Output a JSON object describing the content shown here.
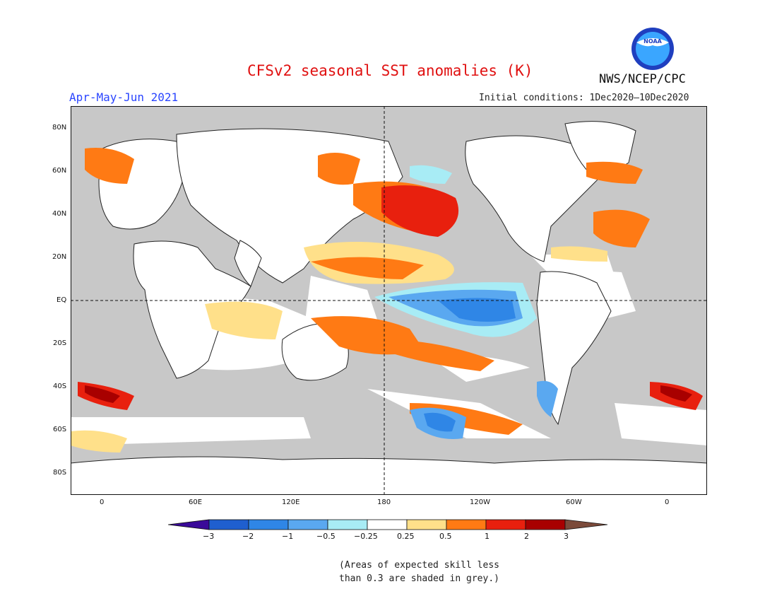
{
  "title": "CFSv2 seasonal SST anomalies (K)",
  "season": "Apr-May-Jun 2021",
  "initial_conditions": "Initial conditions: 1Dec2020–10Dec2020",
  "agency": "NWS/NCEP/CPC",
  "logo": {
    "text": "NOAA",
    "colors": {
      "outer": "#1f3fbf",
      "inner": "#3aa6ff",
      "bird": "#ffffff"
    }
  },
  "lat_labels": [
    "80N",
    "60N",
    "40N",
    "20N",
    "EQ",
    "20S",
    "40S",
    "60S",
    "80S"
  ],
  "lon_labels": [
    "0",
    "60E",
    "120E",
    "180",
    "120W",
    "60W",
    "0"
  ],
  "colorbar": {
    "ticks": [
      "−3",
      "−2",
      "−1",
      "−0.5",
      "−0.25",
      "0.25",
      "0.5",
      "1",
      "2",
      "3"
    ],
    "colors": [
      "#3a0a99",
      "#1f5fcf",
      "#2f86e6",
      "#5aa8f0",
      "#a8ecf5",
      "#ffffff",
      "#ffe08a",
      "#ff7a14",
      "#e8200e",
      "#a80000",
      "#7b4a3a"
    ]
  },
  "map_colors": {
    "ocean_grey": "#c8c8c8",
    "land": "#ffffff",
    "neutral": "#ffffff"
  },
  "note": [
    "(Areas of expected skill less",
    "than 0.3 are shaded in grey.)"
  ]
}
